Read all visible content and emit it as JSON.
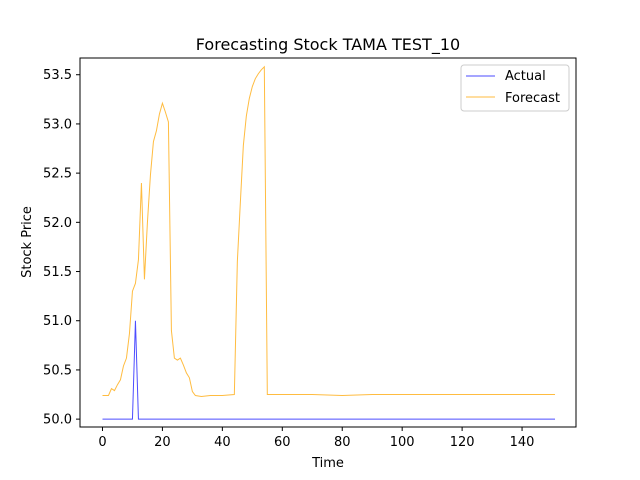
{
  "chart_data": {
    "type": "line",
    "title": "Forecasting Stock TAMA TEST_10",
    "xlabel": "Time",
    "ylabel": "Stock Price",
    "xlim": [
      -7.5,
      158
    ],
    "ylim": [
      49.92,
      53.67
    ],
    "xticks": [
      0,
      20,
      40,
      60,
      80,
      100,
      120,
      140
    ],
    "yticks": [
      50.0,
      50.5,
      51.0,
      51.5,
      52.0,
      52.5,
      53.0,
      53.5
    ],
    "ytick_labels": [
      "50.0",
      "50.5",
      "51.0",
      "51.5",
      "52.0",
      "52.5",
      "53.0",
      "53.5"
    ],
    "grid": false,
    "legend_position": "top-right",
    "series": [
      {
        "name": "Actual",
        "color": "#0000ff",
        "points": [
          [
            0,
            50.0
          ],
          [
            10,
            50.0
          ],
          [
            11,
            51.0
          ],
          [
            12,
            50.0
          ],
          [
            151,
            50.0
          ]
        ]
      },
      {
        "name": "Forecast",
        "color": "#ffa500",
        "points": [
          [
            0,
            50.24
          ],
          [
            1,
            50.24
          ],
          [
            2,
            50.24
          ],
          [
            3,
            50.31
          ],
          [
            4,
            50.29
          ],
          [
            5,
            50.35
          ],
          [
            6,
            50.4
          ],
          [
            7,
            50.54
          ],
          [
            8,
            50.62
          ],
          [
            9,
            50.87
          ],
          [
            10,
            51.3
          ],
          [
            11,
            51.38
          ],
          [
            12,
            51.62
          ],
          [
            13,
            52.4
          ],
          [
            14,
            51.42
          ],
          [
            15,
            52.0
          ],
          [
            16,
            52.48
          ],
          [
            17,
            52.82
          ],
          [
            18,
            52.93
          ],
          [
            19,
            53.1
          ],
          [
            20,
            53.21
          ],
          [
            21,
            53.12
          ],
          [
            22,
            53.02
          ],
          [
            23,
            50.9
          ],
          [
            24,
            50.62
          ],
          [
            25,
            50.6
          ],
          [
            26,
            50.62
          ],
          [
            27,
            50.55
          ],
          [
            28,
            50.47
          ],
          [
            29,
            50.42
          ],
          [
            30,
            50.28
          ],
          [
            31,
            50.24
          ],
          [
            33,
            50.23
          ],
          [
            36,
            50.24
          ],
          [
            40,
            50.24
          ],
          [
            44,
            50.25
          ],
          [
            45,
            51.6
          ],
          [
            46,
            52.2
          ],
          [
            47,
            52.78
          ],
          [
            48,
            53.08
          ],
          [
            49,
            53.26
          ],
          [
            50,
            53.38
          ],
          [
            51,
            53.46
          ],
          [
            52,
            53.51
          ],
          [
            53,
            53.55
          ],
          [
            54,
            53.58
          ],
          [
            55,
            50.25
          ],
          [
            60,
            50.25
          ],
          [
            70,
            50.25
          ],
          [
            80,
            50.24
          ],
          [
            90,
            50.25
          ],
          [
            100,
            50.25
          ],
          [
            110,
            50.25
          ],
          [
            120,
            50.25
          ],
          [
            130,
            50.25
          ],
          [
            140,
            50.25
          ],
          [
            151,
            50.25
          ]
        ]
      }
    ]
  }
}
